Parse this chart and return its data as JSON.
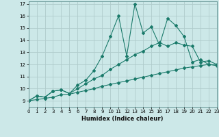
{
  "xlabel": "Humidex (Indice chaleur)",
  "bg_color": "#cce8e8",
  "grid_color": "#b0cccc",
  "line_color": "#1a7a6a",
  "x_min": 0,
  "x_max": 23,
  "y_min": 8.5,
  "y_max": 17.2,
  "x_ticks": [
    0,
    1,
    2,
    3,
    4,
    5,
    6,
    7,
    8,
    9,
    10,
    11,
    12,
    13,
    14,
    15,
    16,
    17,
    18,
    19,
    20,
    21,
    22,
    23
  ],
  "y_ticks": [
    9,
    10,
    11,
    12,
    13,
    14,
    15,
    16,
    17
  ],
  "series1_y": [
    9.0,
    9.4,
    9.3,
    9.8,
    9.9,
    9.6,
    10.3,
    10.7,
    11.5,
    12.7,
    14.3,
    16.0,
    12.7,
    17.0,
    14.6,
    15.1,
    13.6,
    15.8,
    15.2,
    14.3,
    12.2,
    12.4,
    12.0,
    11.9
  ],
  "series2_y": [
    9.0,
    9.4,
    9.3,
    9.8,
    9.9,
    9.6,
    10.0,
    10.4,
    10.8,
    11.1,
    11.6,
    12.0,
    12.4,
    12.8,
    13.1,
    13.5,
    13.8,
    13.5,
    13.8,
    13.6,
    13.5,
    12.2,
    12.3,
    12.0
  ],
  "series3_y": [
    9.0,
    9.1,
    9.2,
    9.3,
    9.5,
    9.55,
    9.7,
    9.85,
    10.0,
    10.2,
    10.35,
    10.5,
    10.65,
    10.8,
    10.95,
    11.1,
    11.25,
    11.4,
    11.55,
    11.7,
    11.8,
    11.9,
    12.0,
    11.95
  ]
}
